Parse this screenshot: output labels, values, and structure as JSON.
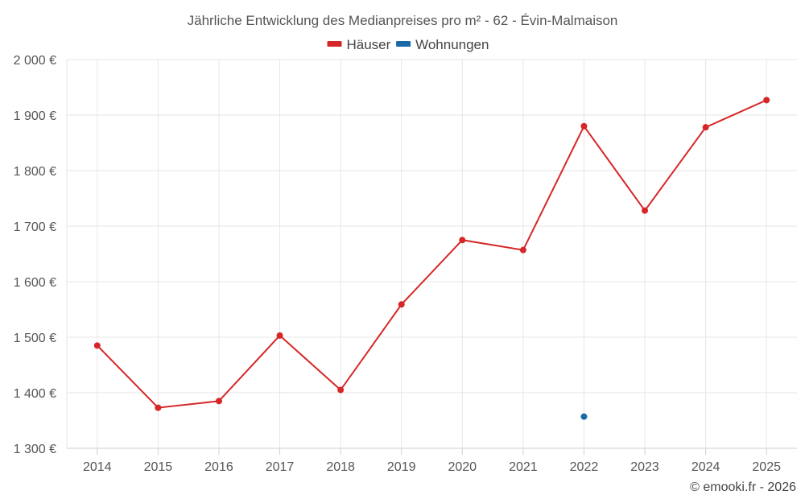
{
  "chart_data": {
    "type": "line",
    "title": "Jährliche Entwicklung des Medianpreises pro m² - 62 - Évin-Malmaison",
    "xlabel": "",
    "ylabel": "",
    "categories": [
      "2014",
      "2015",
      "2016",
      "2017",
      "2018",
      "2019",
      "2020",
      "2021",
      "2022",
      "2023",
      "2024",
      "2025"
    ],
    "ylim": [
      1300,
      2000
    ],
    "yticks": [
      1300,
      1400,
      1500,
      1600,
      1700,
      1800,
      1900,
      2000
    ],
    "ytick_labels": [
      "1 300 €",
      "1 400 €",
      "1 500 €",
      "1 600 €",
      "1 700 €",
      "1 800 €",
      "1 900 €",
      "2 000 €"
    ],
    "grid": true,
    "legend_position": "top-center",
    "series": [
      {
        "name": "Häuser",
        "color": "#d62728",
        "values": [
          1485,
          1373,
          1385,
          1503,
          1405,
          1559,
          1675,
          1657,
          1880,
          1728,
          1878,
          1927
        ]
      },
      {
        "name": "Wohnungen",
        "color": "#1a6aa8",
        "values": [
          null,
          null,
          null,
          null,
          null,
          null,
          null,
          null,
          1357,
          null,
          null,
          null
        ]
      }
    ]
  },
  "credit": "© emooki.fr - 2026"
}
